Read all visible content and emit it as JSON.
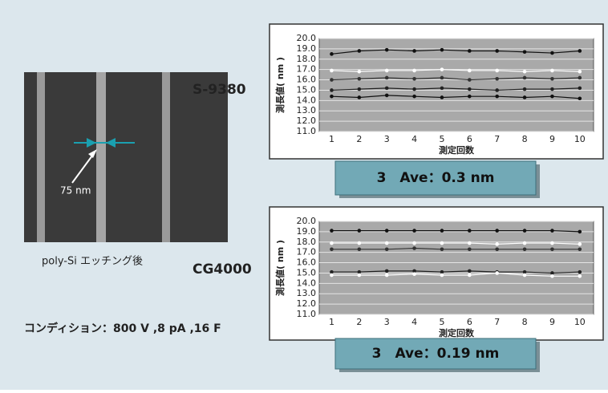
{
  "label_model": "S-9380",
  "label_cg": "CG4000",
  "image_caption": "poly-Si エッチング後",
  "scale_label": "75 nm",
  "condition": "コンディション：800 V ,8 pA ,16 F",
  "chart_data": [
    {
      "type": "line",
      "ylabel": "測長値( nm )",
      "xlabel": "測定回数",
      "summary": "3　Ave：0.3 nm",
      "x": [
        1,
        2,
        3,
        4,
        5,
        6,
        7,
        8,
        9,
        10
      ],
      "xlim": [
        0.55,
        10.5
      ],
      "xticks": [
        1,
        2,
        3,
        4,
        5,
        6,
        7,
        8,
        9,
        10
      ],
      "ylim": [
        11,
        20
      ],
      "yticks": [
        {
          "value": 11,
          "label": "11.0"
        },
        {
          "value": 12,
          "label": "12.0"
        },
        {
          "value": 13,
          "label": "13.0"
        },
        {
          "value": 14,
          "label": "14.0"
        },
        {
          "value": 15,
          "label": "15.0"
        },
        {
          "value": 16,
          "label": "16.0"
        },
        {
          "value": 17,
          "label": "17.0"
        },
        {
          "value": 18,
          "label": "18.0"
        },
        {
          "value": 19,
          "label": "19.0"
        },
        {
          "value": 20,
          "label": "20.0"
        }
      ],
      "grid": true,
      "series": [
        {
          "color": "#111111",
          "values": [
            18.5,
            18.8,
            18.9,
            18.8,
            18.9,
            18.8,
            18.8,
            18.7,
            18.6,
            18.8
          ]
        },
        {
          "color": "#ffffff",
          "values": [
            16.9,
            16.8,
            16.9,
            16.9,
            17.0,
            16.9,
            16.9,
            16.8,
            16.9,
            16.8
          ]
        },
        {
          "color": "#333333",
          "values": [
            16.0,
            16.1,
            16.2,
            16.1,
            16.2,
            16.0,
            16.1,
            16.2,
            16.1,
            16.2
          ]
        },
        {
          "color": "#222222",
          "values": [
            15.0,
            15.1,
            15.2,
            15.1,
            15.2,
            15.1,
            15.0,
            15.1,
            15.1,
            15.2
          ]
        },
        {
          "color": "#111111",
          "values": [
            14.4,
            14.3,
            14.5,
            14.4,
            14.3,
            14.4,
            14.4,
            14.3,
            14.4,
            14.2
          ]
        }
      ]
    },
    {
      "type": "line",
      "ylabel": "測長値( nm )",
      "xlabel": "測定回数",
      "summary": "3　Ave：0.19 nm",
      "x": [
        1,
        2,
        3,
        4,
        5,
        6,
        7,
        8,
        9,
        10
      ],
      "xlim": [
        0.55,
        10.5
      ],
      "xticks": [
        1,
        2,
        3,
        4,
        5,
        6,
        7,
        8,
        9,
        10
      ],
      "ylim": [
        11,
        20
      ],
      "yticks": [
        {
          "value": 11,
          "label": "11.0"
        },
        {
          "value": 12,
          "label": "12.0"
        },
        {
          "value": 13,
          "label": "13.0"
        },
        {
          "value": 14,
          "label": "14.0"
        },
        {
          "value": 15,
          "label": "15.0"
        },
        {
          "value": 16,
          "label": "16.0"
        },
        {
          "value": 17,
          "label": "17.0"
        },
        {
          "value": 18,
          "label": "18.0"
        },
        {
          "value": 19,
          "label": "19.0"
        },
        {
          "value": 20,
          "label": "20.0"
        }
      ],
      "grid": true,
      "series": [
        {
          "color": "#111111",
          "values": [
            19.1,
            19.1,
            19.1,
            19.1,
            19.1,
            19.1,
            19.1,
            19.1,
            19.1,
            19.0
          ]
        },
        {
          "color": "#ffffff",
          "values": [
            17.9,
            17.9,
            17.9,
            17.9,
            17.9,
            17.9,
            17.8,
            17.9,
            17.9,
            17.8
          ]
        },
        {
          "color": "#333333",
          "values": [
            17.3,
            17.3,
            17.3,
            17.4,
            17.3,
            17.3,
            17.3,
            17.3,
            17.3,
            17.3
          ]
        },
        {
          "color": "#222222",
          "values": [
            15.1,
            15.1,
            15.2,
            15.2,
            15.1,
            15.2,
            15.1,
            15.1,
            15.0,
            15.1
          ]
        },
        {
          "color": "#ffffff",
          "values": [
            14.8,
            14.8,
            14.8,
            14.9,
            14.8,
            14.8,
            15.0,
            14.8,
            14.7,
            14.7
          ]
        }
      ]
    }
  ]
}
